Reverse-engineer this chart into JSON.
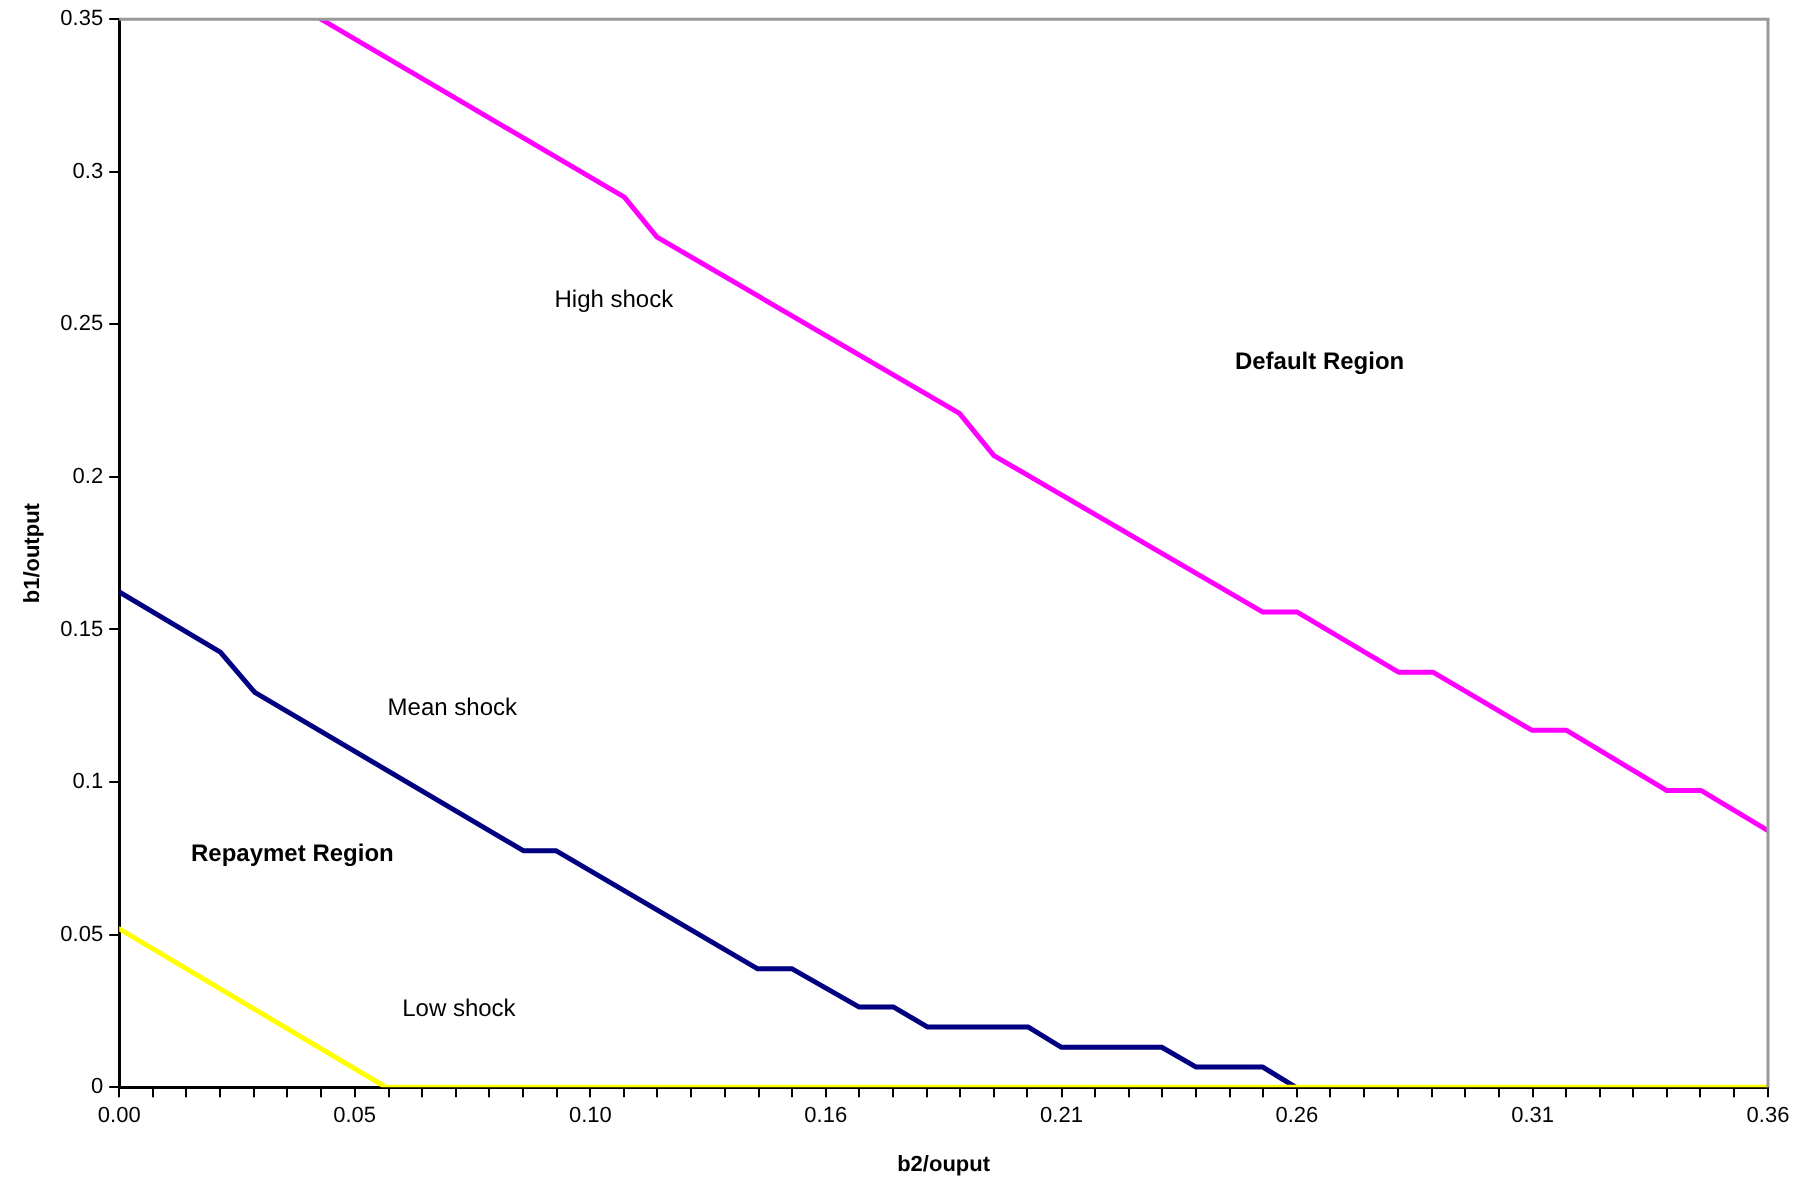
{
  "chart_data": {
    "type": "line",
    "xlabel": "b2/ouput",
    "ylabel": "b1/output",
    "xlim": [
      0,
      0.3636
    ],
    "ylim": [
      0,
      0.35
    ],
    "xticks": [
      {
        "value": 0,
        "label": "0.00"
      },
      {
        "value": 0.0074,
        "label": null
      },
      {
        "value": 0.0148,
        "label": null
      },
      {
        "value": 0.0223,
        "label": null
      },
      {
        "value": 0.0297,
        "label": null
      },
      {
        "value": 0.0371,
        "label": null
      },
      {
        "value": 0.0445,
        "label": null
      },
      {
        "value": 0.0519,
        "label": "0.05"
      },
      {
        "value": 0.0594,
        "label": null
      },
      {
        "value": 0.0668,
        "label": null
      },
      {
        "value": 0.0742,
        "label": null
      },
      {
        "value": 0.0816,
        "label": null
      },
      {
        "value": 0.089,
        "label": null
      },
      {
        "value": 0.0965,
        "label": null
      },
      {
        "value": 0.1039,
        "label": "0.10"
      },
      {
        "value": 0.1113,
        "label": null
      },
      {
        "value": 0.1187,
        "label": null
      },
      {
        "value": 0.1261,
        "label": null
      },
      {
        "value": 0.1336,
        "label": null
      },
      {
        "value": 0.141,
        "label": null
      },
      {
        "value": 0.1484,
        "label": null
      },
      {
        "value": 0.1558,
        "label": "0.16"
      },
      {
        "value": 0.1632,
        "label": null
      },
      {
        "value": 0.1707,
        "label": null
      },
      {
        "value": 0.1781,
        "label": null
      },
      {
        "value": 0.1855,
        "label": null
      },
      {
        "value": 0.1929,
        "label": null
      },
      {
        "value": 0.2003,
        "label": null
      },
      {
        "value": 0.2078,
        "label": "0.21"
      },
      {
        "value": 0.2152,
        "label": null
      },
      {
        "value": 0.2226,
        "label": null
      },
      {
        "value": 0.23,
        "label": null
      },
      {
        "value": 0.2374,
        "label": null
      },
      {
        "value": 0.2449,
        "label": null
      },
      {
        "value": 0.2523,
        "label": null
      },
      {
        "value": 0.2597,
        "label": "0.26"
      },
      {
        "value": 0.2671,
        "label": null
      },
      {
        "value": 0.2745,
        "label": null
      },
      {
        "value": 0.282,
        "label": null
      },
      {
        "value": 0.2894,
        "label": null
      },
      {
        "value": 0.2968,
        "label": null
      },
      {
        "value": 0.3042,
        "label": null
      },
      {
        "value": 0.3117,
        "label": "0.31"
      },
      {
        "value": 0.3191,
        "label": null
      },
      {
        "value": 0.3265,
        "label": null
      },
      {
        "value": 0.3339,
        "label": null
      },
      {
        "value": 0.3413,
        "label": null
      },
      {
        "value": 0.3487,
        "label": null
      },
      {
        "value": 0.3562,
        "label": null
      },
      {
        "value": 0.3636,
        "label": "0.36"
      }
    ],
    "yticks": [
      0,
      0.05,
      {
        "value": 0.1,
        "label": "0.1"
      },
      0.15,
      {
        "value": 0.2,
        "label": "0.2"
      },
      0.25,
      {
        "value": 0.3,
        "label": "0.3"
      },
      0.35
    ],
    "grid": false,
    "legend": false,
    "marker": "none",
    "line_style": "solid",
    "series": [
      {
        "name": "High shock",
        "color": "#ff00ff",
        "x": [
          0.0445,
          0.1114,
          0.1186,
          0.1853,
          0.1929,
          0.2522,
          0.2598,
          0.2821,
          0.2897,
          0.3115,
          0.3191,
          0.3413,
          0.3489,
          0.3636
        ],
        "values": [
          0.35,
          0.2917,
          0.2786,
          0.2208,
          0.207,
          0.1557,
          0.1557,
          0.136,
          0.136,
          0.117,
          0.117,
          0.0972,
          0.0972,
          0.0841
        ]
      },
      {
        "name": "Mean shock",
        "color": "#000080",
        "x": [
          0,
          0.0223,
          0.0299,
          0.0891,
          0.0963,
          0.1408,
          0.1484,
          0.1631,
          0.1707,
          0.1783,
          0.2005,
          0.2077,
          0.2299,
          0.2375,
          0.2522,
          0.2594
        ],
        "values": [
          0.1623,
          0.1426,
          0.1294,
          0.0775,
          0.0775,
          0.0388,
          0.0388,
          0.0263,
          0.0263,
          0.0197,
          0.0197,
          0.0131,
          0.0131,
          0.0066,
          0.0066,
          0
        ]
      },
      {
        "name": "Low shock",
        "color": "#ffff00",
        "x": [
          0,
          0.0588,
          0.3636
        ],
        "values": [
          0.0519,
          0,
          0
        ]
      }
    ],
    "annotations": [
      "Default Region",
      "Repaymet Region"
    ]
  }
}
